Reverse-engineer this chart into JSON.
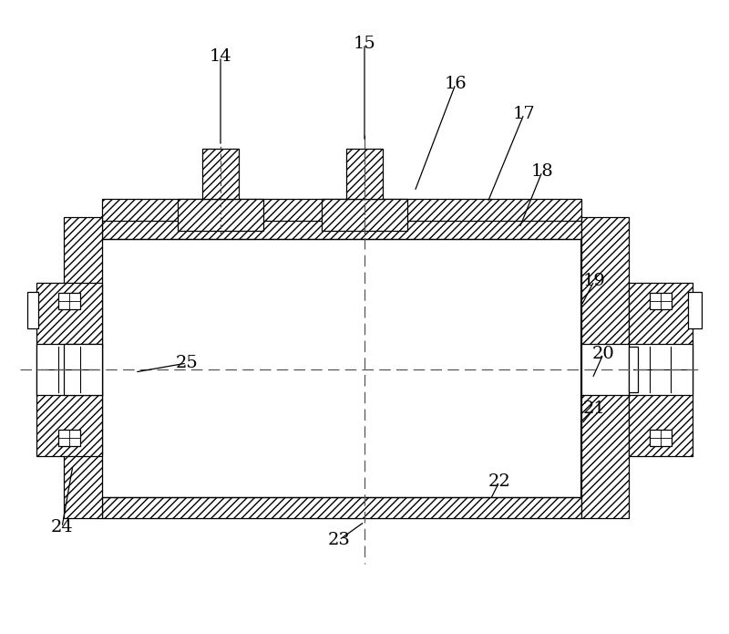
{
  "bg_color": "#ffffff",
  "line_color": "#000000",
  "figsize": [
    8.0,
    6.95
  ],
  "dpi": 100,
  "label_data": [
    [
      "14",
      242,
      62,
      242,
      160
    ],
    [
      "15",
      400,
      48,
      400,
      155
    ],
    [
      "16",
      500,
      92,
      455,
      210
    ],
    [
      "17",
      575,
      125,
      535,
      222
    ],
    [
      "18",
      595,
      188,
      570,
      250
    ],
    [
      "19",
      652,
      308,
      638,
      335
    ],
    [
      "20",
      662,
      388,
      650,
      415
    ],
    [
      "21",
      652,
      448,
      638,
      465
    ],
    [
      "22",
      548,
      528,
      538,
      548
    ],
    [
      "23",
      372,
      592,
      400,
      572
    ],
    [
      "24",
      68,
      578,
      80,
      510
    ],
    [
      "25",
      205,
      398,
      148,
      408
    ]
  ]
}
